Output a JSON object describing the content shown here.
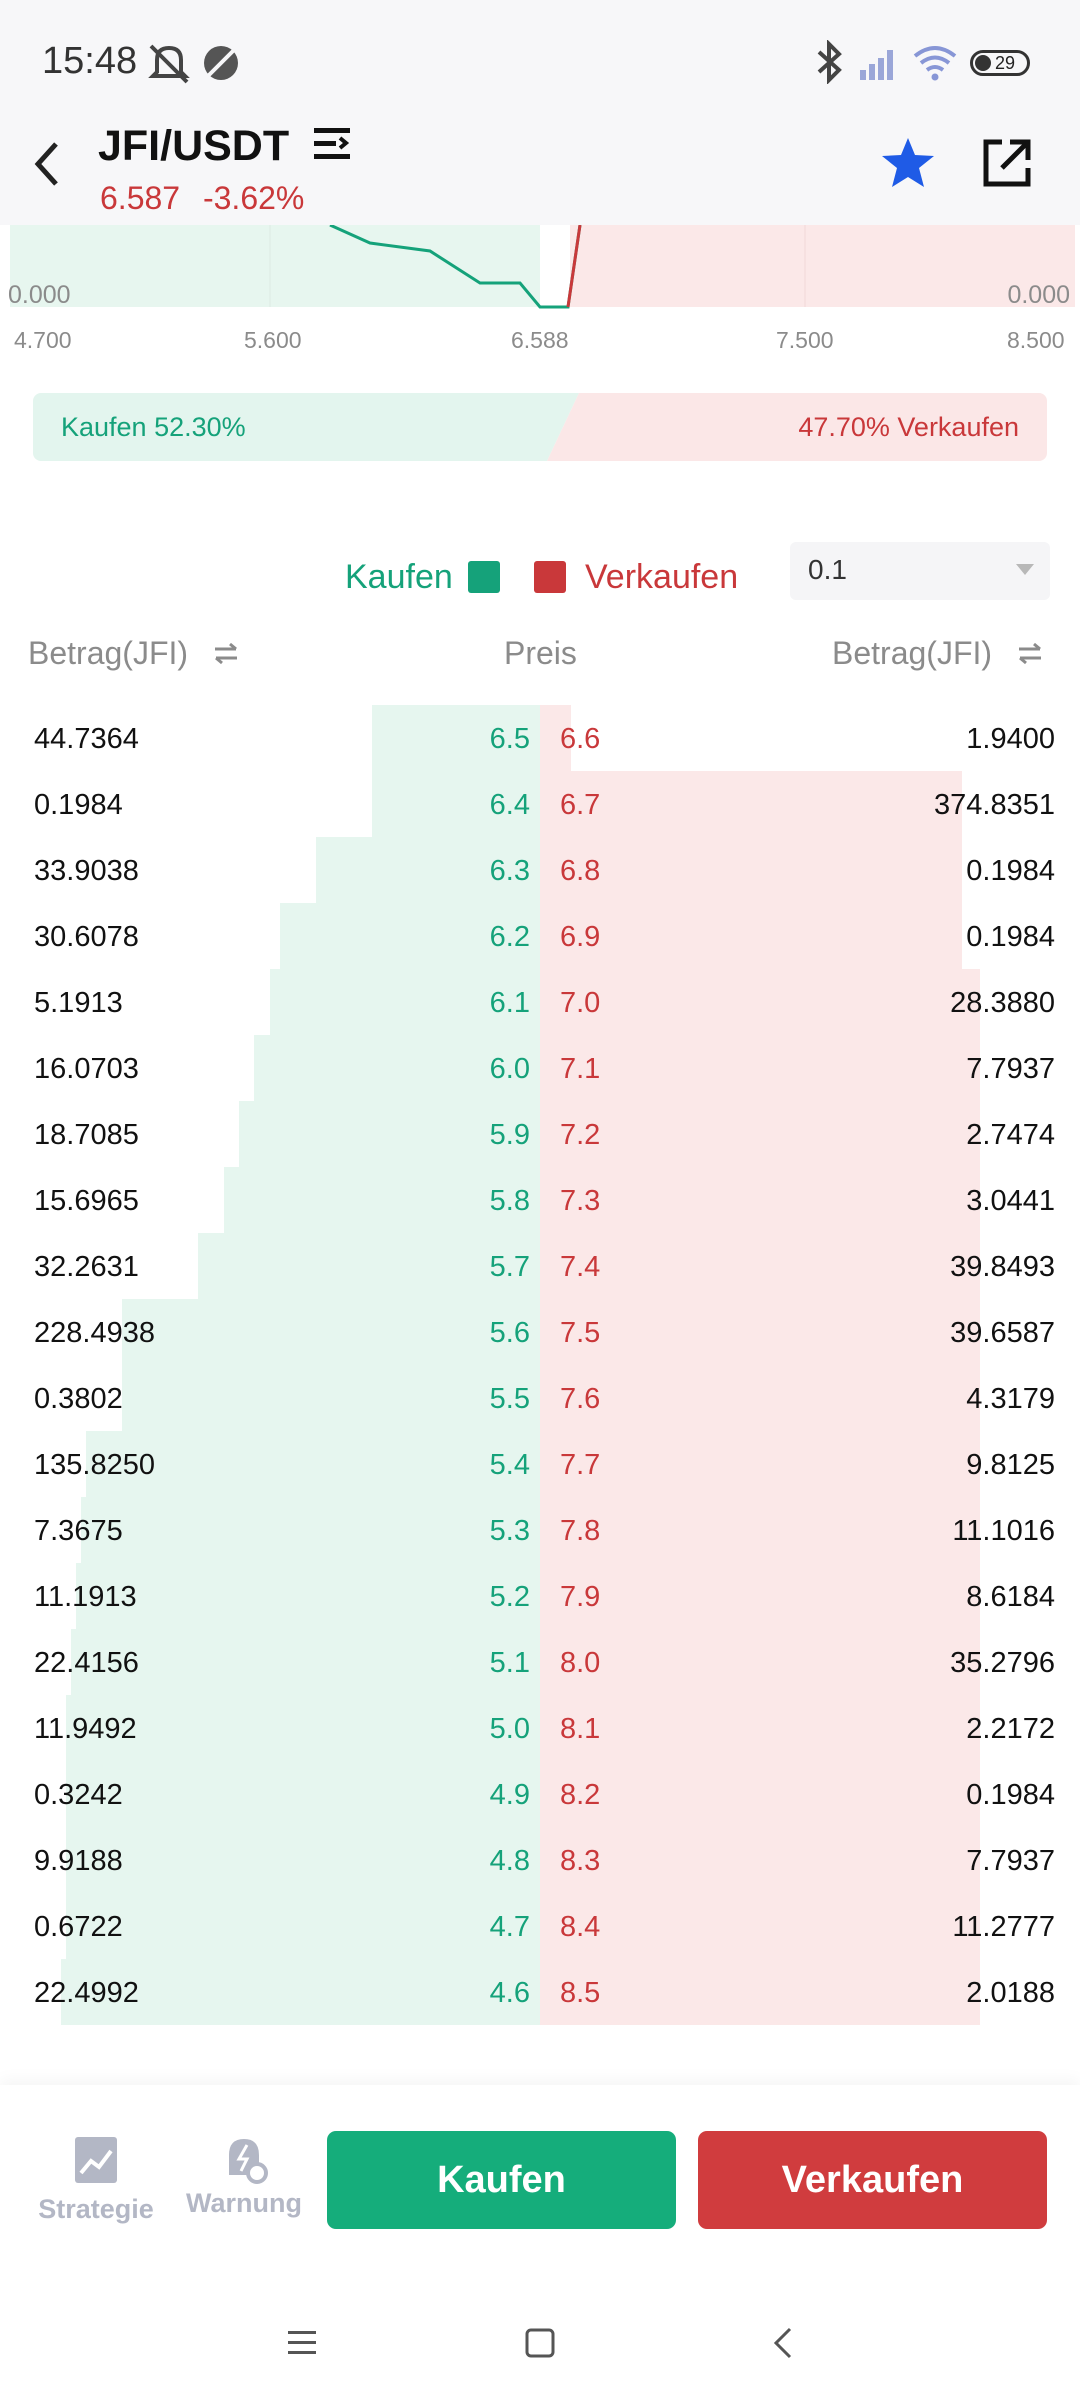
{
  "status_bar": {
    "time": "15:48",
    "battery": "29",
    "icons": [
      "mute-icon",
      "ring-icon",
      "bluetooth-icon",
      "signal-icon",
      "wifi-icon",
      "battery-icon"
    ]
  },
  "header": {
    "pair": "JFI/USDT",
    "last_price": "6.587",
    "change": "-3.62%",
    "icons": [
      "back-icon",
      "menu-icon",
      "star-icon",
      "share-icon"
    ]
  },
  "depth_chart": {
    "left_volume": "0.000",
    "right_volume": "0.000",
    "ticks": [
      "4.700",
      "5.600",
      "6.588",
      "7.500",
      "8.500"
    ]
  },
  "ratio": {
    "buy_label": "Kaufen 52.30%",
    "sell_label": "47.70% Verkaufen",
    "buy_percent": 52.3,
    "sell_percent": 47.7
  },
  "legend": {
    "buy": "Kaufen",
    "sell": "Verkaufen",
    "precision": "0.1"
  },
  "columns": {
    "buy_amount": "Betrag(JFI)",
    "price": "Preis",
    "sell_amount": "Betrag(JFI)"
  },
  "orderbook": {
    "rows": [
      {
        "buy_amount": "44.7364",
        "buy_price": "6.5",
        "sell_price": "6.6",
        "sell_amount": "1.9400",
        "buy_depth": 0.33,
        "sell_depth": 0.07
      },
      {
        "buy_amount": "0.1984",
        "buy_price": "6.4",
        "sell_price": "6.7",
        "sell_amount": "374.8351",
        "buy_depth": 0.33,
        "sell_depth": 0.96
      },
      {
        "buy_amount": "33.9038",
        "buy_price": "6.3",
        "sell_price": "6.8",
        "sell_amount": "0.1984",
        "buy_depth": 0.44,
        "sell_depth": 0.96
      },
      {
        "buy_amount": "30.6078",
        "buy_price": "6.2",
        "sell_price": "6.9",
        "sell_amount": "0.1984",
        "buy_depth": 0.51,
        "sell_depth": 0.96
      },
      {
        "buy_amount": "5.1913",
        "buy_price": "6.1",
        "sell_price": "7.0",
        "sell_amount": "28.3880",
        "buy_depth": 0.53,
        "sell_depth": 1.0
      },
      {
        "buy_amount": "16.0703",
        "buy_price": "6.0",
        "sell_price": "7.1",
        "sell_amount": "7.7937",
        "buy_depth": 0.56,
        "sell_depth": 1.0
      },
      {
        "buy_amount": "18.7085",
        "buy_price": "5.9",
        "sell_price": "7.2",
        "sell_amount": "2.7474",
        "buy_depth": 0.59,
        "sell_depth": 1.0
      },
      {
        "buy_amount": "15.6965",
        "buy_price": "5.8",
        "sell_price": "7.3",
        "sell_amount": "3.0441",
        "buy_depth": 0.62,
        "sell_depth": 1.0
      },
      {
        "buy_amount": "32.2631",
        "buy_price": "5.7",
        "sell_price": "7.4",
        "sell_amount": "39.8493",
        "buy_depth": 0.67,
        "sell_depth": 1.0
      },
      {
        "buy_amount": "228.4938",
        "buy_price": "5.6",
        "sell_price": "7.5",
        "sell_amount": "39.6587",
        "buy_depth": 0.82,
        "sell_depth": 1.0
      },
      {
        "buy_amount": "0.3802",
        "buy_price": "5.5",
        "sell_price": "7.6",
        "sell_amount": "4.3179",
        "buy_depth": 0.82,
        "sell_depth": 1.0
      },
      {
        "buy_amount": "135.8250",
        "buy_price": "5.4",
        "sell_price": "7.7",
        "sell_amount": "9.8125",
        "buy_depth": 0.89,
        "sell_depth": 1.0
      },
      {
        "buy_amount": "7.3675",
        "buy_price": "5.3",
        "sell_price": "7.8",
        "sell_amount": "11.1016",
        "buy_depth": 0.9,
        "sell_depth": 1.0
      },
      {
        "buy_amount": "11.1913",
        "buy_price": "5.2",
        "sell_price": "7.9",
        "sell_amount": "8.6184",
        "buy_depth": 0.91,
        "sell_depth": 1.0
      },
      {
        "buy_amount": "22.4156",
        "buy_price": "5.1",
        "sell_price": "8.0",
        "sell_amount": "35.2796",
        "buy_depth": 0.92,
        "sell_depth": 1.0
      },
      {
        "buy_amount": "11.9492",
        "buy_price": "5.0",
        "sell_price": "8.1",
        "sell_amount": "2.2172",
        "buy_depth": 0.93,
        "sell_depth": 1.0
      },
      {
        "buy_amount": "0.3242",
        "buy_price": "4.9",
        "sell_price": "8.2",
        "sell_amount": "0.1984",
        "buy_depth": 0.93,
        "sell_depth": 1.0
      },
      {
        "buy_amount": "9.9188",
        "buy_price": "4.8",
        "sell_price": "8.3",
        "sell_amount": "7.7937",
        "buy_depth": 0.93,
        "sell_depth": 1.0
      },
      {
        "buy_amount": "0.6722",
        "buy_price": "4.7",
        "sell_price": "8.4",
        "sell_amount": "11.2777",
        "buy_depth": 0.93,
        "sell_depth": 1.0
      },
      {
        "buy_amount": "22.4992",
        "buy_price": "4.6",
        "sell_price": "8.5",
        "sell_amount": "2.0188",
        "buy_depth": 0.94,
        "sell_depth": 1.0
      }
    ]
  },
  "bottom_bar": {
    "strategy": "Strategie",
    "alert": "Warnung",
    "buy_button": "Kaufen",
    "sell_button": "Verkaufen"
  },
  "colors": {
    "buy": "#15a27a",
    "sell": "#c9383a",
    "accent": "#1f5be6"
  }
}
